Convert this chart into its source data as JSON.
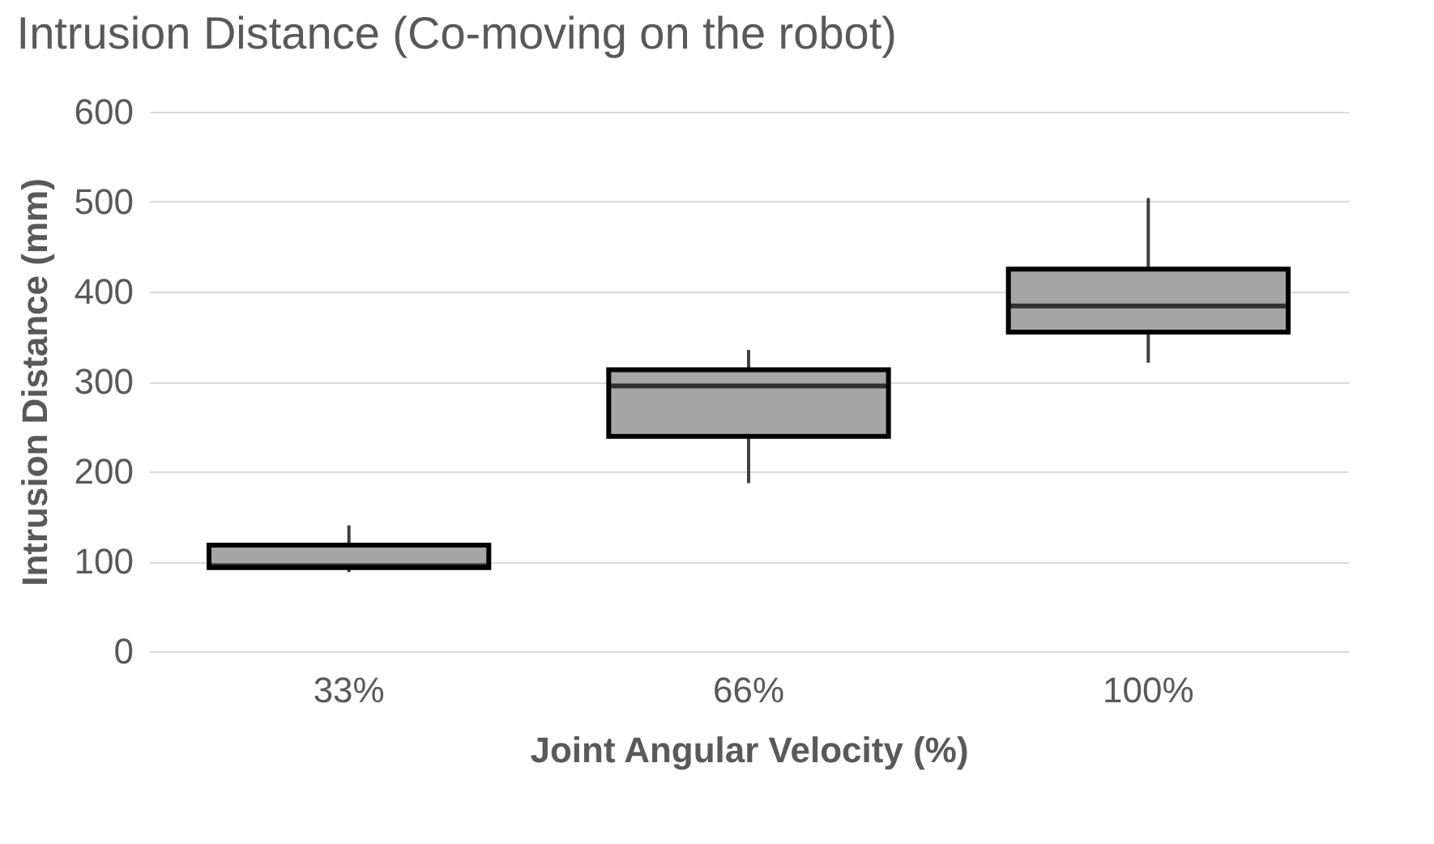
{
  "chart_data": {
    "type": "box",
    "title": "Intrusion Distance (Co-moving on the robot)",
    "xlabel": "Joint Angular Velocity (%)",
    "ylabel": "Intrusion Distance (mm)",
    "categories": [
      "33%",
      "66%",
      "100%"
    ],
    "boxes": [
      {
        "low": 88,
        "q1": 93,
        "median": 95,
        "q3": 118,
        "high": 140
      },
      {
        "low": 187,
        "q1": 239,
        "median": 295,
        "q3": 313,
        "high": 335
      },
      {
        "low": 321,
        "q1": 355,
        "median": 384,
        "q3": 425,
        "high": 504
      }
    ],
    "color": "#a6a6a6",
    "ylim": [
      0,
      600
    ],
    "yticks": [
      0,
      100,
      200,
      300,
      400,
      500,
      600
    ],
    "grid": "y"
  }
}
